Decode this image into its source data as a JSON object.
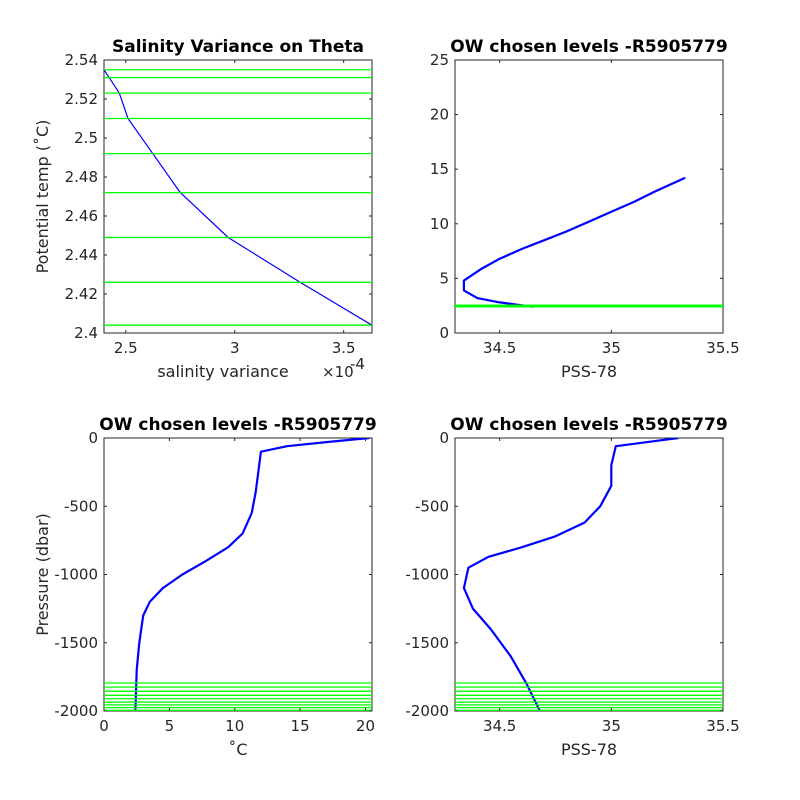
{
  "chart_data": [
    {
      "type": "line",
      "title": "Salinity Variance on Theta",
      "xlabel": "salinity variance",
      "x_exponent_label": "×10",
      "x_exponent": "-4",
      "ylabel": "Potential temp (˚C)",
      "xlim": [
        2.4,
        3.63
      ],
      "ylim": [
        2.4,
        2.54
      ],
      "xticks": [
        2.5,
        3,
        3.5
      ],
      "xtick_labels": [
        "2.5",
        "3",
        "3.5"
      ],
      "yticks": [
        2.4,
        2.42,
        2.44,
        2.46,
        2.48,
        2.5,
        2.52,
        2.54
      ],
      "ytick_labels": [
        "2.4",
        "2.42",
        "2.44",
        "2.46",
        "2.48",
        "2.5",
        "2.52",
        "2.54"
      ],
      "series": [
        {
          "color": "#0000ff",
          "x": [
            2.4,
            2.47,
            2.51,
            2.75,
            2.97,
            3.3,
            3.63
          ],
          "y": [
            2.535,
            2.523,
            2.51,
            2.472,
            2.449,
            2.426,
            2.404
          ]
        }
      ],
      "hlines": {
        "color": "#00ff00",
        "y": [
          2.404,
          2.426,
          2.449,
          2.472,
          2.492,
          2.51,
          2.523,
          2.531,
          2.535
        ]
      }
    },
    {
      "type": "line",
      "title": "OW chosen levels -R5905779",
      "xlabel": "PSS-78",
      "ylabel": "",
      "xlim": [
        34.3,
        35.5
      ],
      "ylim": [
        0,
        25
      ],
      "xticks": [
        34.5,
        35,
        35.5
      ],
      "xtick_labels": [
        "34.5",
        "35",
        "35.5"
      ],
      "yticks": [
        0,
        5,
        10,
        15,
        20,
        25
      ],
      "ytick_labels": [
        "0",
        "5",
        "10",
        "15",
        "20",
        "25"
      ],
      "series": [
        {
          "color": "#0000ff",
          "x": [
            34.65,
            34.5,
            34.4,
            34.34,
            34.34,
            34.42,
            34.5,
            34.6,
            34.7,
            34.8,
            34.9,
            35.0,
            35.1,
            35.2,
            35.33
          ],
          "y": [
            2.4,
            2.8,
            3.2,
            3.9,
            4.8,
            5.9,
            6.8,
            7.7,
            8.5,
            9.3,
            10.2,
            11.1,
            12.0,
            13.0,
            14.2
          ]
        }
      ],
      "hlines": {
        "color": "#00ff00",
        "y": [
          2.4,
          2.42,
          2.45,
          2.47,
          2.49,
          2.51,
          2.52,
          2.53,
          2.54
        ]
      }
    },
    {
      "type": "line",
      "title": "OW chosen levels -R5905779",
      "xlabel": "˚C",
      "ylabel": "Pressure (dbar)",
      "xlim": [
        0,
        20.5
      ],
      "ylim": [
        -2000,
        0
      ],
      "xticks": [
        0,
        5,
        10,
        15,
        20
      ],
      "xtick_labels": [
        "0",
        "5",
        "10",
        "15",
        "20"
      ],
      "yticks": [
        -2000,
        -1500,
        -1000,
        -500,
        0
      ],
      "ytick_labels": [
        "-2000",
        "-1500",
        "-1000",
        "-500",
        "0"
      ],
      "series": [
        {
          "color": "#0000ff",
          "x": [
            2.4,
            2.5,
            2.7,
            3.0,
            3.5,
            4.5,
            6.0,
            7.8,
            9.5,
            10.6,
            11.3,
            11.6,
            11.8,
            12.0,
            14.0,
            17.0,
            20.3
          ],
          "y": [
            -2000,
            -1700,
            -1500,
            -1300,
            -1200,
            -1100,
            -1000,
            -900,
            -800,
            -700,
            -550,
            -400,
            -250,
            -100,
            -60,
            -30,
            0
          ]
        }
      ],
      "hlines": {
        "color": "#00ff00",
        "y": [
          -1795,
          -1825,
          -1855,
          -1885,
          -1910,
          -1935,
          -1955,
          -1975,
          -1995
        ]
      }
    },
    {
      "type": "line",
      "title": "OW chosen levels -R5905779",
      "xlabel": "PSS-78",
      "ylabel": "",
      "xlim": [
        34.3,
        35.5
      ],
      "ylim": [
        -2000,
        0
      ],
      "xticks": [
        34.5,
        35,
        35.5
      ],
      "xtick_labels": [
        "34.5",
        "35",
        "35.5"
      ],
      "yticks": [
        -2000,
        -1500,
        -1000,
        -500,
        0
      ],
      "ytick_labels": [
        "-2000",
        "-1500",
        "-1000",
        "-500",
        "0"
      ],
      "series": [
        {
          "color": "#0000ff",
          "x": [
            34.68,
            34.62,
            34.55,
            34.46,
            34.38,
            34.34,
            34.36,
            34.45,
            34.6,
            34.75,
            34.88,
            34.95,
            35.0,
            35.0,
            35.02,
            35.3
          ],
          "y": [
            -2000,
            -1800,
            -1600,
            -1400,
            -1250,
            -1100,
            -950,
            -870,
            -800,
            -720,
            -620,
            -500,
            -350,
            -200,
            -60,
            0
          ]
        }
      ],
      "hlines": {
        "color": "#00ff00",
        "y": [
          -1795,
          -1825,
          -1855,
          -1885,
          -1910,
          -1935,
          -1955,
          -1975,
          -1995
        ]
      }
    }
  ]
}
